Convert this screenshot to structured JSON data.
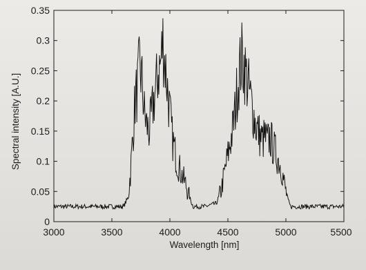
{
  "chart_data": {
    "type": "line",
    "title": "",
    "xlabel": "Wavelength [nm]",
    "ylabel": "Spectral intensity [A.U.]",
    "xlim": [
      3000,
      5500
    ],
    "ylim": [
      0,
      0.35
    ],
    "xticks": [
      3000,
      3500,
      4000,
      4500,
      5000,
      5500
    ],
    "yticks": [
      0,
      0.05,
      0.1,
      0.15,
      0.2,
      0.25,
      0.3,
      0.35
    ],
    "xtick_labels": [
      "3000",
      "3500",
      "4000",
      "4500",
      "5000",
      "5500"
    ],
    "ytick_labels": [
      "0",
      "0.05",
      "0.1",
      "0.15",
      "0.2",
      "0.25",
      "0.3",
      "0.35"
    ],
    "grid": false,
    "legend": "none",
    "line_color": "#141414",
    "series": [
      {
        "name": "",
        "x": [
          3000,
          3100,
          3200,
          3300,
          3400,
          3500,
          3600,
          3640,
          3660,
          3680,
          3700,
          3720,
          3740,
          3760,
          3780,
          3800,
          3820,
          3840,
          3860,
          3880,
          3900,
          3920,
          3940,
          3960,
          3980,
          4000,
          4020,
          4040,
          4060,
          4080,
          4100,
          4120,
          4140,
          4160,
          4180,
          4200,
          4300,
          4400,
          4420,
          4440,
          4460,
          4480,
          4500,
          4520,
          4540,
          4560,
          4580,
          4600,
          4620,
          4640,
          4660,
          4680,
          4700,
          4720,
          4740,
          4760,
          4780,
          4800,
          4820,
          4840,
          4860,
          4880,
          4900,
          4920,
          4940,
          4960,
          4980,
          5000,
          5020,
          5040,
          5100,
          5200,
          5300,
          5400,
          5500
        ],
        "values": [
          0.025,
          0.025,
          0.025,
          0.025,
          0.025,
          0.025,
          0.025,
          0.04,
          0.08,
          0.14,
          0.2,
          0.22,
          0.26,
          0.23,
          0.18,
          0.16,
          0.15,
          0.17,
          0.2,
          0.22,
          0.25,
          0.26,
          0.3,
          0.26,
          0.22,
          0.18,
          0.14,
          0.12,
          0.1,
          0.09,
          0.08,
          0.07,
          0.06,
          0.045,
          0.035,
          0.025,
          0.025,
          0.03,
          0.04,
          0.05,
          0.07,
          0.09,
          0.11,
          0.13,
          0.15,
          0.18,
          0.22,
          0.25,
          0.27,
          0.26,
          0.24,
          0.22,
          0.2,
          0.18,
          0.16,
          0.15,
          0.14,
          0.135,
          0.14,
          0.13,
          0.14,
          0.13,
          0.12,
          0.11,
          0.1,
          0.09,
          0.07,
          0.05,
          0.035,
          0.025,
          0.025,
          0.025,
          0.025,
          0.025,
          0.025
        ]
      }
    ]
  }
}
